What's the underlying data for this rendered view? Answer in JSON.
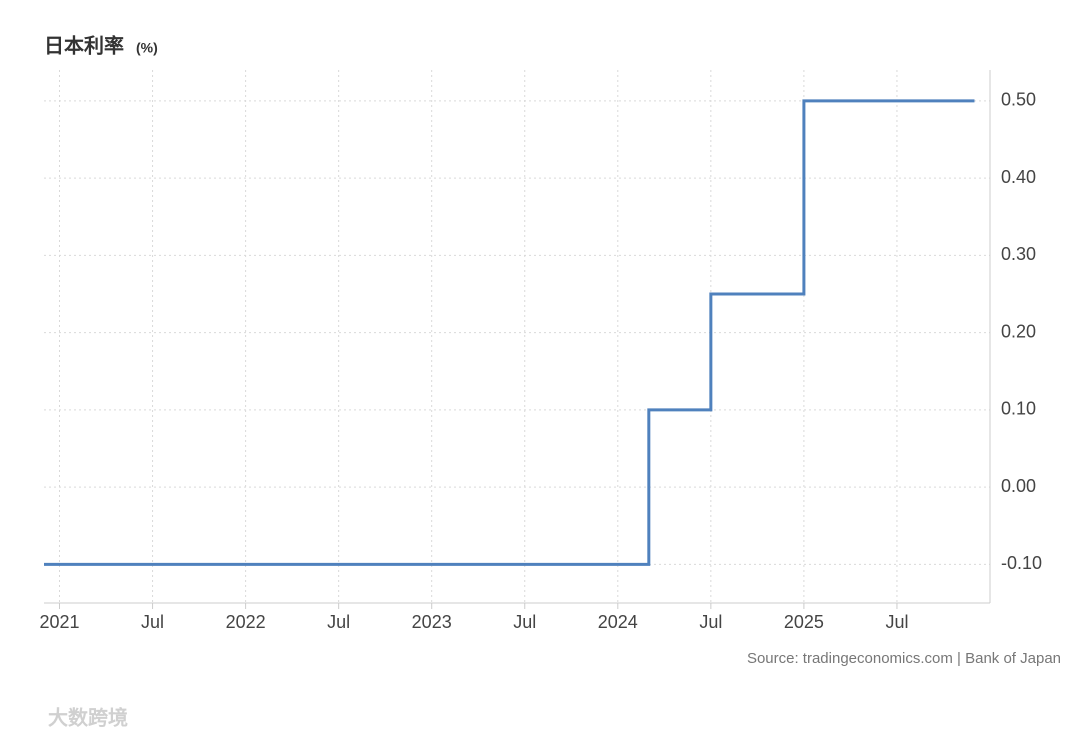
{
  "chart_data": {
    "type": "line",
    "title": "日本利率",
    "unit": "(%)",
    "x": [
      "2020-12",
      "2024-03",
      "2024-07",
      "2025-01",
      "2025-12"
    ],
    "series": [
      {
        "name": "日本利率",
        "color": "#4f81bd",
        "values": [
          -0.1,
          0.1,
          0.25,
          0.5,
          0.5
        ]
      }
    ],
    "step": true,
    "xlim": [
      "2020-12",
      "2026-01"
    ],
    "xticks": [
      {
        "value": "2021-01",
        "label": "2021"
      },
      {
        "value": "2021-07",
        "label": "Jul"
      },
      {
        "value": "2022-01",
        "label": "2022"
      },
      {
        "value": "2022-07",
        "label": "Jul"
      },
      {
        "value": "2023-01",
        "label": "2023"
      },
      {
        "value": "2023-07",
        "label": "Jul"
      },
      {
        "value": "2024-01",
        "label": "2024"
      },
      {
        "value": "2024-07",
        "label": "Jul"
      },
      {
        "value": "2025-01",
        "label": "2025"
      },
      {
        "value": "2025-07",
        "label": "Jul"
      }
    ],
    "ylim": [
      -0.15,
      0.54
    ],
    "yticks": [
      {
        "value": 0.5,
        "label": "0.50"
      },
      {
        "value": 0.4,
        "label": "0.40"
      },
      {
        "value": 0.3,
        "label": "0.30"
      },
      {
        "value": 0.2,
        "label": "0.20"
      },
      {
        "value": 0.1,
        "label": "0.10"
      },
      {
        "value": 0,
        "label": "0.00"
      },
      {
        "value": -0.1,
        "label": "-0.10"
      }
    ],
    "grid": true,
    "source": "Source: tradingeconomics.com | Bank of Japan",
    "watermark": "大数跨境"
  }
}
